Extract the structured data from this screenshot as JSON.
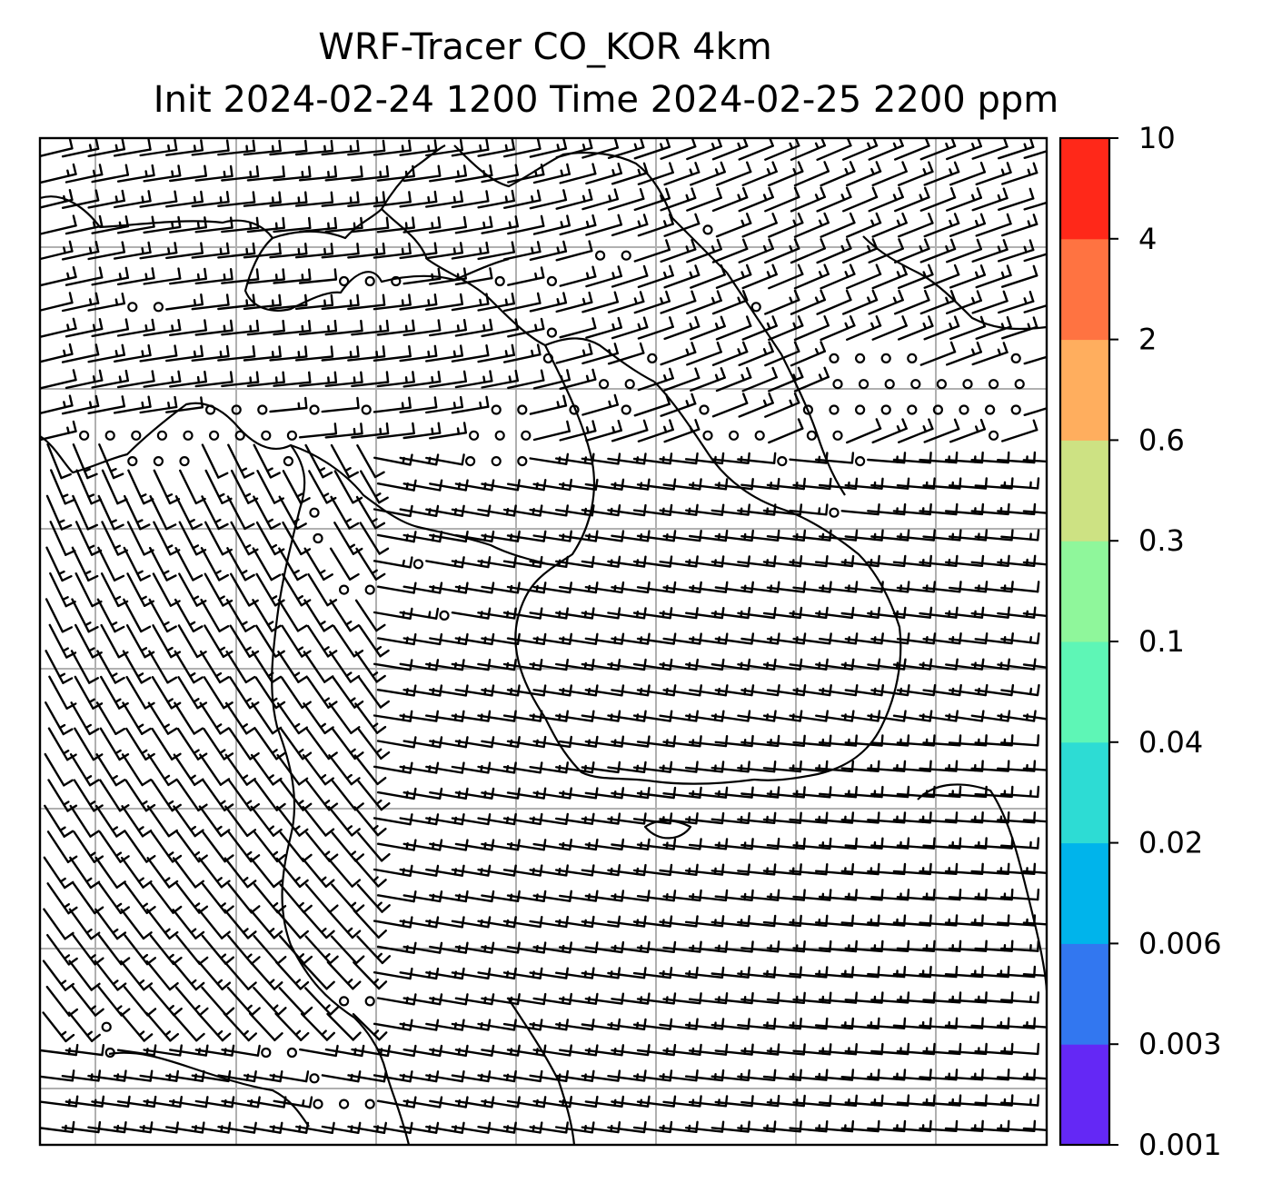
{
  "title": {
    "line1": "WRF-Tracer CO_KOR 4km",
    "line2": "Init 2024-02-24 1200 Time 2024-02-25 2200 ppm"
  },
  "colorbar": {
    "levels": [
      "0.001",
      "0.003",
      "0.006",
      "0.02",
      "0.04",
      "0.1",
      "0.3",
      "0.6",
      "2",
      "4",
      "10"
    ],
    "colors": [
      "#6428f5",
      "#3277f0",
      "#00b4eb",
      "#2ddcd4",
      "#5ef6b6",
      "#8ff79b",
      "#cde283",
      "#ffae5e",
      "#ff7341",
      "#ff2819"
    ]
  },
  "map": {
    "gridlines": true,
    "overlay": "wind barbs",
    "barb_color": "#000000",
    "gridline_color": "#b0b0b0",
    "coastline_color": "#000000"
  }
}
